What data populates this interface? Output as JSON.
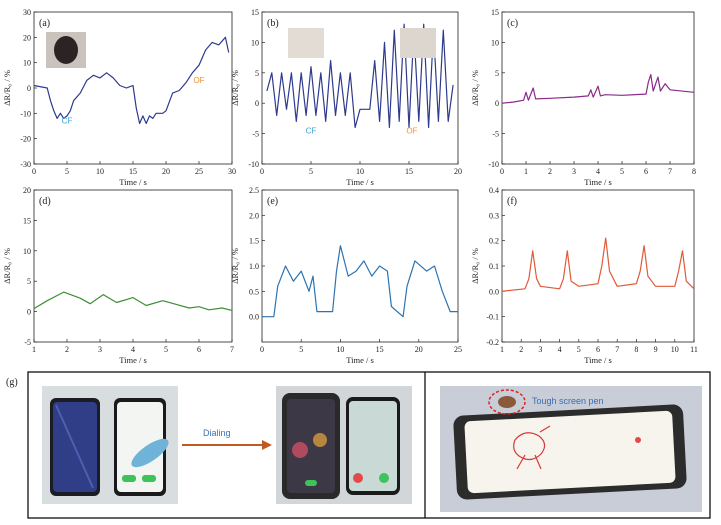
{
  "chart_data": [
    {
      "id": "a",
      "type": "line",
      "panel_label": "(a)",
      "xlabel": "Time / s",
      "ylabel": "ΔR/R₀ / %",
      "xlim": [
        0,
        30
      ],
      "ylim": [
        -30,
        30
      ],
      "xticks": [
        0,
        5,
        10,
        15,
        20,
        25,
        30
      ],
      "yticks": [
        -30,
        -20,
        -10,
        0,
        10,
        20,
        30
      ],
      "color": "#2e3a8c",
      "annotations": [
        {
          "text": "CF",
          "x": 5,
          "y": -14,
          "color": "#3aa3d8"
        },
        {
          "text": "OF",
          "x": 25,
          "y": 2,
          "color": "#e8952f"
        }
      ],
      "series": [
        {
          "values": [
            [
              0,
              1
            ],
            [
              2,
              0
            ],
            [
              2.5,
              -5
            ],
            [
              3,
              -9
            ],
            [
              3.5,
              -12
            ],
            [
              4,
              -10
            ],
            [
              4.5,
              -12
            ],
            [
              5,
              -11
            ],
            [
              5.5,
              -9
            ],
            [
              6,
              -5
            ],
            [
              7,
              -2
            ],
            [
              8,
              3
            ],
            [
              9,
              5
            ],
            [
              10,
              4
            ],
            [
              11,
              6
            ],
            [
              12,
              4
            ],
            [
              13,
              1
            ],
            [
              14,
              0
            ],
            [
              15,
              1
            ],
            [
              15.5,
              -8
            ],
            [
              16,
              -14
            ],
            [
              16.5,
              -11
            ],
            [
              17,
              -14
            ],
            [
              17.5,
              -11
            ],
            [
              18,
              -12
            ],
            [
              18.5,
              -10
            ],
            [
              19,
              -10
            ],
            [
              19.5,
              -10
            ],
            [
              20,
              -9
            ],
            [
              21,
              -2
            ],
            [
              22,
              -1
            ],
            [
              23,
              2
            ],
            [
              24,
              6
            ],
            [
              25,
              9
            ],
            [
              26,
              15
            ],
            [
              27,
              18
            ],
            [
              28,
              17
            ],
            [
              29,
              20
            ],
            [
              29.5,
              14
            ]
          ]
        }
      ]
    },
    {
      "id": "b",
      "type": "line",
      "panel_label": "(b)",
      "xlabel": "Time / s",
      "ylabel": "ΔR/R₀ / %",
      "xlim": [
        0,
        20
      ],
      "ylim": [
        -10,
        15
      ],
      "xticks": [
        0,
        5,
        10,
        15,
        20
      ],
      "yticks": [
        -10,
        -5,
        0,
        5,
        10,
        15
      ],
      "color": "#2e3a8c",
      "annotations": [
        {
          "text": "CF",
          "x": 5,
          "y": -5,
          "color": "#3aa3d8"
        },
        {
          "text": "OF",
          "x": 15.3,
          "y": -5,
          "color": "#e8952f"
        }
      ],
      "series": [
        {
          "values": [
            [
              0.5,
              2
            ],
            [
              1,
              5
            ],
            [
              1.5,
              -2
            ],
            [
              2,
              5
            ],
            [
              2.5,
              -1
            ],
            [
              3,
              5
            ],
            [
              3.5,
              -3
            ],
            [
              4,
              5
            ],
            [
              4.5,
              -2
            ],
            [
              5,
              6
            ],
            [
              5.5,
              -2
            ],
            [
              6,
              5
            ],
            [
              6.5,
              -3
            ],
            [
              7,
              7
            ],
            [
              7.5,
              -2
            ],
            [
              8,
              5
            ],
            [
              8.5,
              -2
            ],
            [
              9,
              5
            ],
            [
              9.5,
              -4
            ],
            [
              10,
              -1
            ],
            [
              11,
              -1
            ],
            [
              11.5,
              7
            ],
            [
              12,
              -3
            ],
            [
              12.5,
              10
            ],
            [
              13,
              -4
            ],
            [
              13.5,
              12
            ],
            [
              14,
              -3
            ],
            [
              14.5,
              13
            ],
            [
              15,
              -4
            ],
            [
              15.5,
              12
            ],
            [
              16,
              -3
            ],
            [
              16.5,
              13
            ],
            [
              17,
              -4
            ],
            [
              17.5,
              12
            ],
            [
              18,
              -3
            ],
            [
              18.5,
              12
            ],
            [
              19,
              -3
            ],
            [
              19.5,
              3
            ]
          ]
        }
      ]
    },
    {
      "id": "c",
      "type": "line",
      "panel_label": "(c)",
      "xlabel": "Time / s",
      "ylabel": "ΔR/R₀ / %",
      "xlim": [
        0,
        8
      ],
      "ylim": [
        -10,
        15
      ],
      "xticks": [
        0,
        1,
        2,
        3,
        4,
        5,
        6,
        7,
        8
      ],
      "yticks": [
        -10,
        -5,
        0,
        5,
        10,
        15
      ],
      "color": "#8a2a8c",
      "series": [
        {
          "values": [
            [
              0,
              0
            ],
            [
              0.5,
              0.2
            ],
            [
              0.9,
              0.5
            ],
            [
              1,
              1.8
            ],
            [
              1.1,
              0.5
            ],
            [
              1.2,
              1.5
            ],
            [
              1.3,
              2.5
            ],
            [
              1.4,
              0.7
            ],
            [
              2,
              0.8
            ],
            [
              3,
              1
            ],
            [
              3.6,
              1.2
            ],
            [
              3.7,
              2.2
            ],
            [
              3.8,
              1
            ],
            [
              4,
              2.8
            ],
            [
              4.1,
              1.2
            ],
            [
              4.3,
              1.4
            ],
            [
              5,
              1.3
            ],
            [
              6,
              1.5
            ],
            [
              6.1,
              3.5
            ],
            [
              6.2,
              4.7
            ],
            [
              6.3,
              2
            ],
            [
              6.5,
              4.3
            ],
            [
              6.6,
              2
            ],
            [
              6.8,
              3.2
            ],
            [
              7,
              2.2
            ],
            [
              8,
              1.8
            ]
          ]
        }
      ]
    },
    {
      "id": "d",
      "type": "line",
      "panel_label": "(d)",
      "xlabel": "Time / s",
      "ylabel": "ΔR/R₀ / %",
      "xlim": [
        1,
        7
      ],
      "ylim": [
        -5,
        20
      ],
      "xticks": [
        1,
        2,
        3,
        4,
        5,
        6,
        7
      ],
      "yticks": [
        -5,
        0,
        5,
        10,
        15,
        20
      ],
      "color": "#3d8f35",
      "series": [
        {
          "values": [
            [
              1,
              0.5
            ],
            [
              1.4,
              1.8
            ],
            [
              1.9,
              3.2
            ],
            [
              2.4,
              2.2
            ],
            [
              2.7,
              1.3
            ],
            [
              3.1,
              2.8
            ],
            [
              3.5,
              1.5
            ],
            [
              4,
              2.3
            ],
            [
              4.4,
              1
            ],
            [
              4.9,
              1.8
            ],
            [
              5.3,
              1.2
            ],
            [
              5.7,
              0.6
            ],
            [
              6,
              0.8
            ],
            [
              6.3,
              0.3
            ],
            [
              6.7,
              0.6
            ],
            [
              7,
              0.2
            ]
          ]
        }
      ]
    },
    {
      "id": "e",
      "type": "line",
      "panel_label": "(e)",
      "xlabel": "Time / s",
      "ylabel": "ΔR/R₀ / %",
      "xlim": [
        0,
        25
      ],
      "ylim": [
        -0.5,
        2.5
      ],
      "xticks": [
        0,
        5,
        10,
        15,
        20,
        25
      ],
      "yticks": [
        0.0,
        0.5,
        1.0,
        1.5,
        2.0,
        2.5
      ],
      "color": "#2c73b0",
      "series": [
        {
          "values": [
            [
              0,
              0
            ],
            [
              1.5,
              0
            ],
            [
              2,
              0.6
            ],
            [
              3,
              1
            ],
            [
              4,
              0.7
            ],
            [
              5,
              0.9
            ],
            [
              6,
              0.5
            ],
            [
              6.5,
              0.8
            ],
            [
              7,
              0.1
            ],
            [
              9,
              0.1
            ],
            [
              9.5,
              0.9
            ],
            [
              10,
              1.4
            ],
            [
              11,
              0.8
            ],
            [
              12,
              0.9
            ],
            [
              13,
              1.1
            ],
            [
              14,
              0.8
            ],
            [
              15,
              1
            ],
            [
              16,
              0.9
            ],
            [
              16.5,
              0.2
            ],
            [
              18,
              0
            ],
            [
              18.5,
              0.6
            ],
            [
              19.5,
              1.1
            ],
            [
              21,
              0.9
            ],
            [
              22,
              1
            ],
            [
              23,
              0.5
            ],
            [
              24,
              0.1
            ],
            [
              25,
              0.1
            ]
          ]
        }
      ]
    },
    {
      "id": "f",
      "type": "line",
      "panel_label": "(f)",
      "xlabel": "Time / s",
      "ylabel": "ΔR/R₀ / %",
      "xlim": [
        1,
        11
      ],
      "ylim": [
        -0.2,
        0.4
      ],
      "xticks": [
        1,
        2,
        3,
        4,
        5,
        6,
        7,
        8,
        9,
        10,
        11
      ],
      "yticks": [
        -0.2,
        -0.1,
        0.0,
        0.1,
        0.2,
        0.3,
        0.4
      ],
      "color": "#e05a38",
      "series": [
        {
          "values": [
            [
              1,
              0
            ],
            [
              2.2,
              0.01
            ],
            [
              2.4,
              0.05
            ],
            [
              2.6,
              0.16
            ],
            [
              2.8,
              0.05
            ],
            [
              3,
              0.02
            ],
            [
              4,
              0.01
            ],
            [
              4.2,
              0.05
            ],
            [
              4.4,
              0.16
            ],
            [
              4.6,
              0.04
            ],
            [
              5,
              0.02
            ],
            [
              6,
              0.03
            ],
            [
              6.2,
              0.1
            ],
            [
              6.4,
              0.21
            ],
            [
              6.6,
              0.08
            ],
            [
              7,
              0.02
            ],
            [
              8,
              0.03
            ],
            [
              8.2,
              0.08
            ],
            [
              8.4,
              0.18
            ],
            [
              8.6,
              0.06
            ],
            [
              9,
              0.02
            ],
            [
              10,
              0.02
            ],
            [
              10.2,
              0.08
            ],
            [
              10.4,
              0.16
            ],
            [
              10.6,
              0.04
            ],
            [
              11,
              0.01
            ]
          ]
        }
      ]
    }
  ],
  "photos": {
    "panel_label": "(g)",
    "dialing_label": "Dialing",
    "pen_label": "Tough screen pen"
  }
}
